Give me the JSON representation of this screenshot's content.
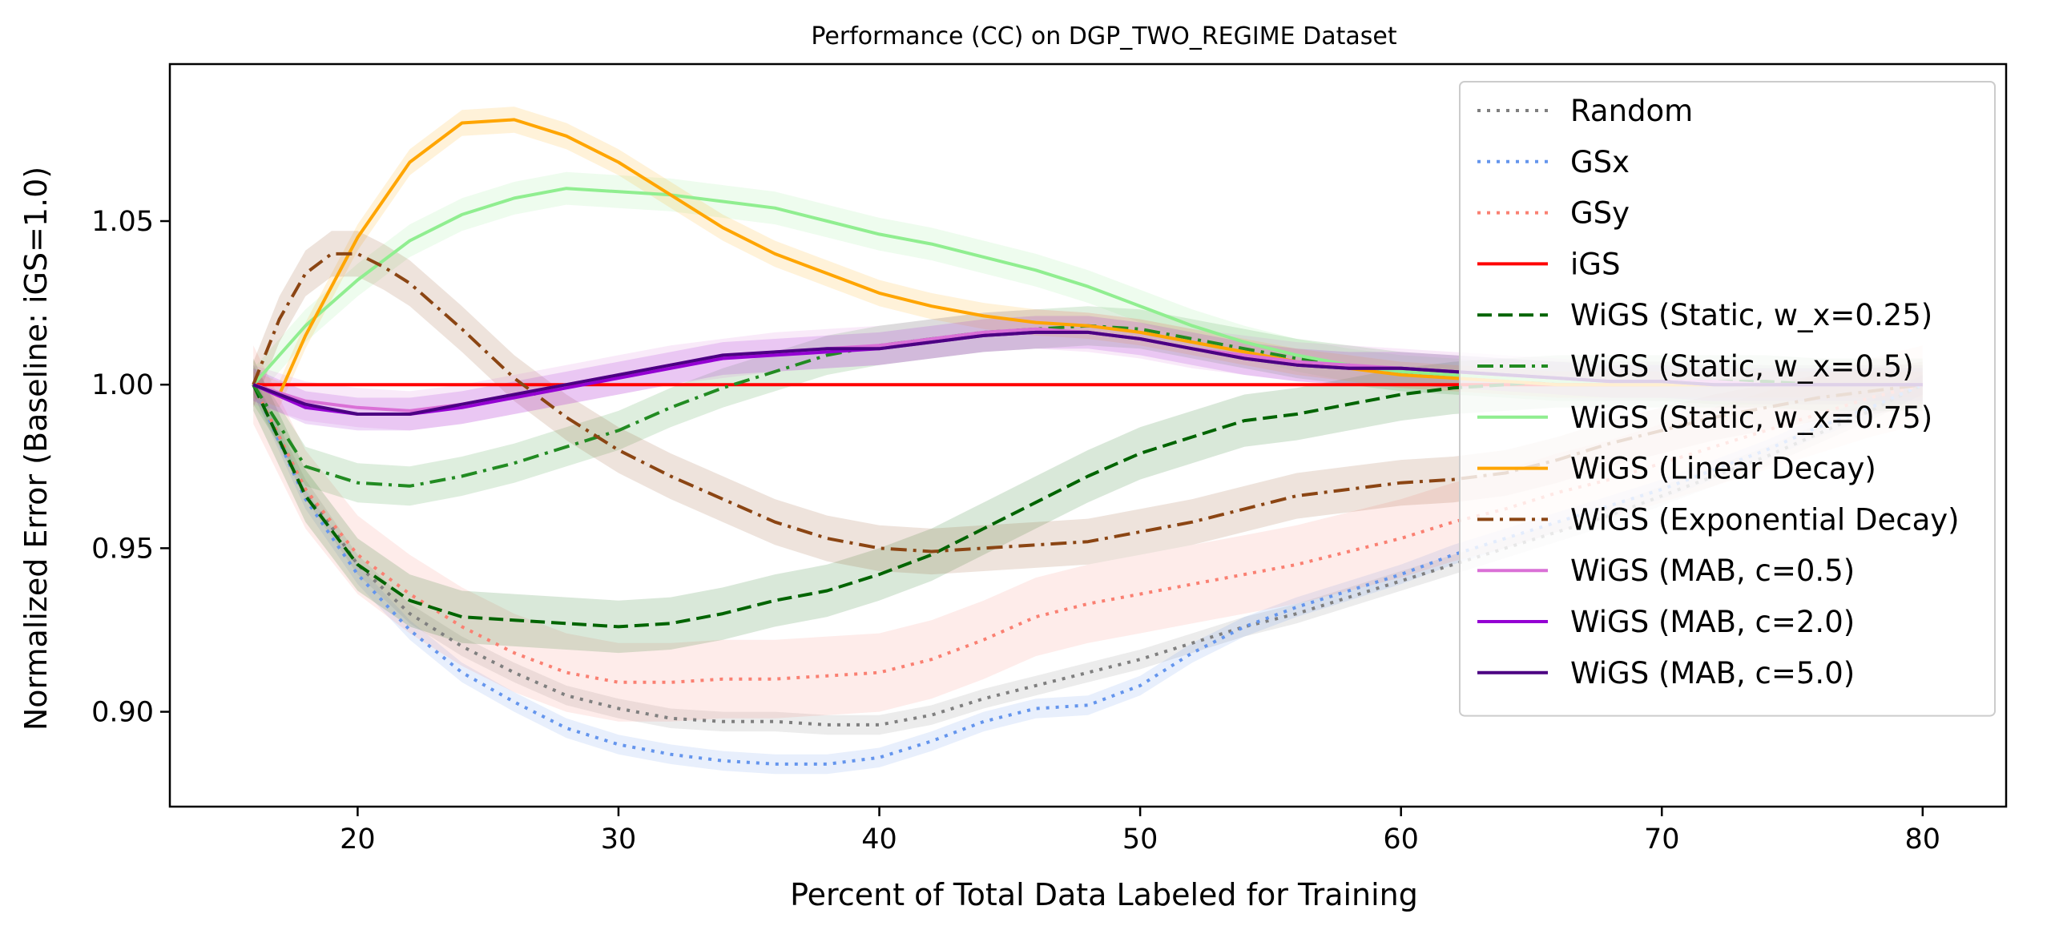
{
  "chart_data": {
    "type": "line",
    "title": "Performance (CC) on DGP_TWO_REGIME Dataset",
    "xlabel": "Percent of Total Data Labeled for Training",
    "ylabel": "Normalized Error (Baseline: iGS=1.0)",
    "xlim": [
      12.8,
      83.2
    ],
    "ylim": [
      0.871,
      1.098
    ],
    "xticks": [
      20,
      30,
      40,
      50,
      60,
      70,
      80
    ],
    "xtick_labels": [
      "20",
      "30",
      "40",
      "50",
      "60",
      "70",
      "80"
    ],
    "yticks": [
      0.9,
      0.95,
      1.0,
      1.05
    ],
    "ytick_labels": [
      "0.90",
      "0.95",
      "1.00",
      "1.05"
    ],
    "grid": false,
    "legend_position": "top-right",
    "series": [
      {
        "name": "Random",
        "color": "#7f7f7f",
        "dash": "dotted",
        "band": 0.003,
        "x": [
          16,
          18,
          20,
          22,
          24,
          26,
          28,
          30,
          32,
          34,
          36,
          38,
          40,
          42,
          44,
          46,
          48,
          50,
          52,
          54,
          56,
          58,
          60,
          62,
          64,
          66,
          68,
          70,
          72,
          74,
          76,
          78,
          80
        ],
        "y": [
          1.0,
          0.968,
          0.945,
          0.93,
          0.92,
          0.912,
          0.905,
          0.901,
          0.898,
          0.897,
          0.897,
          0.896,
          0.896,
          0.899,
          0.904,
          0.908,
          0.912,
          0.916,
          0.921,
          0.926,
          0.93,
          0.935,
          0.94,
          0.945,
          0.95,
          0.955,
          0.96,
          0.966,
          0.972,
          0.978,
          0.985,
          0.992,
          1.0
        ]
      },
      {
        "name": "GSx",
        "color": "#6495ed",
        "dash": "dotted",
        "band": 0.003,
        "x": [
          16,
          18,
          20,
          22,
          24,
          26,
          28,
          30,
          32,
          34,
          36,
          38,
          40,
          42,
          44,
          46,
          48,
          50,
          52,
          54,
          56,
          58,
          60,
          62,
          64,
          66,
          68,
          70,
          72,
          74,
          76,
          78,
          80
        ],
        "y": [
          1.0,
          0.965,
          0.942,
          0.925,
          0.912,
          0.903,
          0.895,
          0.89,
          0.887,
          0.885,
          0.884,
          0.884,
          0.886,
          0.891,
          0.897,
          0.901,
          0.902,
          0.908,
          0.918,
          0.926,
          0.932,
          0.937,
          0.942,
          0.948,
          0.953,
          0.958,
          0.963,
          0.968,
          0.974,
          0.98,
          0.987,
          0.993,
          1.0
        ]
      },
      {
        "name": "GSy",
        "color": "#fa8072",
        "dash": "dotted",
        "band": 0.012,
        "x": [
          16,
          18,
          20,
          22,
          24,
          26,
          28,
          30,
          32,
          34,
          36,
          38,
          40,
          42,
          44,
          46,
          48,
          50,
          52,
          54,
          56,
          58,
          60,
          62,
          64,
          66,
          68,
          70,
          72,
          74,
          76,
          78,
          80
        ],
        "y": [
          1.0,
          0.968,
          0.948,
          0.936,
          0.926,
          0.918,
          0.912,
          0.909,
          0.909,
          0.91,
          0.91,
          0.911,
          0.912,
          0.916,
          0.922,
          0.929,
          0.933,
          0.936,
          0.939,
          0.942,
          0.945,
          0.949,
          0.953,
          0.958,
          0.962,
          0.967,
          0.971,
          0.976,
          0.981,
          0.986,
          0.991,
          0.996,
          1.0
        ]
      },
      {
        "name": "iGS",
        "color": "#ff0000",
        "dash": "solid",
        "band": 0.0,
        "x": [
          16,
          80
        ],
        "y": [
          1.0,
          1.0
        ]
      },
      {
        "name": "WiGS (Static, w_x=0.25)",
        "color": "#006400",
        "dash": "dashed",
        "band": 0.008,
        "x": [
          16,
          18,
          20,
          22,
          24,
          26,
          28,
          30,
          32,
          34,
          36,
          38,
          40,
          42,
          44,
          46,
          48,
          50,
          52,
          54,
          56,
          58,
          60,
          62,
          64,
          66,
          68,
          70,
          72,
          74,
          76,
          78,
          80
        ],
        "y": [
          1.0,
          0.966,
          0.945,
          0.934,
          0.929,
          0.928,
          0.927,
          0.926,
          0.927,
          0.93,
          0.934,
          0.937,
          0.942,
          0.948,
          0.956,
          0.964,
          0.972,
          0.979,
          0.984,
          0.989,
          0.991,
          0.994,
          0.997,
          0.999,
          1.0,
          1.001,
          1.001,
          1.001,
          1.001,
          1.001,
          1.0,
          1.0,
          1.0
        ]
      },
      {
        "name": "WiGS (Static, w_x=0.5)",
        "color": "#228b22",
        "dash": "dashdot",
        "band": 0.006,
        "x": [
          16,
          18,
          20,
          22,
          24,
          26,
          28,
          30,
          32,
          34,
          36,
          38,
          40,
          42,
          44,
          46,
          48,
          50,
          52,
          54,
          56,
          58,
          60,
          62,
          64,
          66,
          68,
          70,
          72,
          74,
          76,
          78,
          80
        ],
        "y": [
          1.0,
          0.975,
          0.97,
          0.969,
          0.972,
          0.976,
          0.981,
          0.986,
          0.993,
          0.999,
          1.004,
          1.009,
          1.012,
          1.014,
          1.016,
          1.017,
          1.018,
          1.017,
          1.014,
          1.011,
          1.008,
          1.006,
          1.004,
          1.003,
          1.002,
          1.001,
          1.001,
          1.001,
          1.0,
          1.0,
          1.0,
          1.0,
          1.0
        ]
      },
      {
        "name": "WiGS (Static, w_x=0.75)",
        "color": "#90ee90",
        "dash": "solid",
        "band": 0.005,
        "x": [
          16,
          18,
          20,
          22,
          24,
          26,
          28,
          30,
          32,
          34,
          36,
          38,
          40,
          42,
          44,
          46,
          48,
          50,
          52,
          54,
          56,
          58,
          60,
          62,
          64,
          66,
          68,
          70,
          72,
          74,
          76,
          78,
          80
        ],
        "y": [
          1.0,
          1.018,
          1.032,
          1.044,
          1.052,
          1.057,
          1.06,
          1.059,
          1.058,
          1.056,
          1.054,
          1.05,
          1.046,
          1.043,
          1.039,
          1.035,
          1.03,
          1.024,
          1.018,
          1.013,
          1.009,
          1.006,
          1.004,
          1.003,
          1.002,
          1.001,
          1.001,
          1.0,
          1.0,
          1.0,
          1.0,
          1.0,
          1.0
        ]
      },
      {
        "name": "WiGS (Linear Decay)",
        "color": "#ffa500",
        "dash": "solid",
        "band": 0.004,
        "x": [
          16,
          17,
          18,
          20,
          22,
          24,
          26,
          28,
          30,
          32,
          34,
          36,
          38,
          40,
          42,
          44,
          46,
          48,
          50,
          52,
          54,
          56,
          58,
          60,
          62,
          64,
          66,
          68,
          70,
          72,
          74,
          76,
          78,
          80
        ],
        "y": [
          1.0,
          0.997,
          1.015,
          1.045,
          1.068,
          1.08,
          1.081,
          1.076,
          1.068,
          1.058,
          1.048,
          1.04,
          1.034,
          1.028,
          1.024,
          1.021,
          1.019,
          1.018,
          1.016,
          1.013,
          1.01,
          1.007,
          1.005,
          1.003,
          1.002,
          1.001,
          1.0,
          1.0,
          1.0,
          1.0,
          1.0,
          1.0,
          1.0,
          1.0
        ]
      },
      {
        "name": "WiGS (Exponential Decay)",
        "color": "#8b4513",
        "dash": "dashdot",
        "band": 0.007,
        "x": [
          16,
          17,
          18,
          19,
          20,
          21,
          22,
          24,
          26,
          28,
          30,
          32,
          34,
          36,
          38,
          40,
          42,
          44,
          46,
          48,
          50,
          52,
          54,
          56,
          58,
          60,
          62,
          64,
          66,
          68,
          70,
          72,
          74,
          76,
          78,
          80
        ],
        "y": [
          1.0,
          1.02,
          1.034,
          1.04,
          1.04,
          1.036,
          1.031,
          1.017,
          1.002,
          0.99,
          0.98,
          0.972,
          0.965,
          0.958,
          0.953,
          0.95,
          0.949,
          0.95,
          0.951,
          0.952,
          0.955,
          0.958,
          0.962,
          0.966,
          0.968,
          0.97,
          0.971,
          0.973,
          0.977,
          0.982,
          0.986,
          0.99,
          0.993,
          0.996,
          0.998,
          1.0
        ]
      },
      {
        "name": "WiGS (MAB, c=0.5)",
        "color": "#da70d6",
        "dash": "solid",
        "band": 0.006,
        "x": [
          16,
          18,
          20,
          22,
          24,
          26,
          28,
          30,
          32,
          34,
          36,
          38,
          40,
          42,
          44,
          46,
          48,
          50,
          52,
          54,
          56,
          58,
          60,
          62,
          64,
          66,
          68,
          70,
          72,
          74,
          76,
          78,
          80
        ],
        "y": [
          1.0,
          0.995,
          0.993,
          0.992,
          0.994,
          0.997,
          1.0,
          1.003,
          1.006,
          1.008,
          1.01,
          1.011,
          1.012,
          1.014,
          1.016,
          1.017,
          1.016,
          1.014,
          1.011,
          1.009,
          1.007,
          1.006,
          1.005,
          1.004,
          1.003,
          1.002,
          1.001,
          1.001,
          1.001,
          1.0,
          1.0,
          1.0,
          1.0
        ]
      },
      {
        "name": "WiGS (MAB, c=2.0)",
        "color": "#9400d3",
        "dash": "solid",
        "band": 0.005,
        "x": [
          16,
          18,
          20,
          22,
          24,
          26,
          28,
          30,
          32,
          34,
          36,
          38,
          40,
          42,
          44,
          46,
          48,
          50,
          52,
          54,
          56,
          58,
          60,
          62,
          64,
          66,
          68,
          70,
          72,
          74,
          76,
          78,
          80
        ],
        "y": [
          1.0,
          0.993,
          0.991,
          0.991,
          0.993,
          0.996,
          0.999,
          1.002,
          1.005,
          1.008,
          1.009,
          1.01,
          1.011,
          1.013,
          1.015,
          1.016,
          1.016,
          1.014,
          1.011,
          1.008,
          1.006,
          1.005,
          1.005,
          1.004,
          1.003,
          1.002,
          1.001,
          1.001,
          1.0,
          1.0,
          1.0,
          1.0,
          1.0
        ]
      },
      {
        "name": "WiGS (MAB, c=5.0)",
        "color": "#4b0082",
        "dash": "solid",
        "band": 0.0,
        "x": [
          16,
          18,
          20,
          22,
          24,
          26,
          28,
          30,
          32,
          34,
          36,
          38,
          40,
          42,
          44,
          46,
          48,
          50,
          52,
          54,
          56,
          58,
          60,
          62,
          64,
          66,
          68,
          70,
          72,
          74,
          76,
          78,
          80
        ],
        "y": [
          1.0,
          0.994,
          0.991,
          0.991,
          0.994,
          0.997,
          1.0,
          1.003,
          1.006,
          1.009,
          1.01,
          1.011,
          1.011,
          1.013,
          1.015,
          1.016,
          1.016,
          1.014,
          1.011,
          1.008,
          1.006,
          1.005,
          1.005,
          1.004,
          1.003,
          1.002,
          1.001,
          1.001,
          1.0,
          1.0,
          1.0,
          1.0,
          1.0
        ]
      }
    ]
  }
}
